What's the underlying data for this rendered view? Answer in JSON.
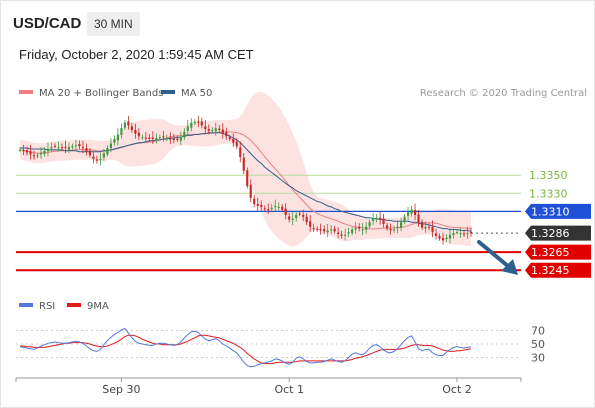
{
  "header": {
    "pair": "USD/CAD",
    "timeframe": "30 MIN",
    "datetime": "Friday, October 2, 2020 1:59:45 AM CET"
  },
  "legend": {
    "items": [
      {
        "label": "MA 20 + Bollinger Bands",
        "color": "#f08080"
      },
      {
        "label": "MA 50",
        "color": "#2e5f8f"
      }
    ],
    "research": "Research © 2020 Trading Central"
  },
  "rsi_legend": {
    "items": [
      {
        "label": "RSI",
        "color": "#5577dd"
      },
      {
        "label": "9MA",
        "color": "#e31b1b"
      }
    ]
  },
  "colors": {
    "up": "#3c9b3c",
    "down": "#c62828",
    "resistance_light": "#7cb342",
    "pivot": "#1f4fd6",
    "support": "#e00000",
    "current": "#333333",
    "arrow": "#2e5f8f",
    "band": "#fde2e2"
  },
  "chart_data": {
    "type": "candlestick",
    "ylim": [
      1.3222,
      1.3432
    ],
    "x_ticks": [
      {
        "label": "Sep 30",
        "index": 29
      },
      {
        "label": "Oct 1",
        "index": 77
      },
      {
        "label": "Oct 2",
        "index": 125
      }
    ],
    "levels": [
      {
        "value": 1.335,
        "label": "1.3350",
        "style": "resistance_light"
      },
      {
        "value": 1.333,
        "label": "1.3330",
        "style": "resistance_light"
      },
      {
        "value": 1.331,
        "label": "1.3310",
        "style": "pivot"
      },
      {
        "value": 1.3286,
        "label": "1.3286",
        "style": "current"
      },
      {
        "value": 1.3265,
        "label": "1.3265",
        "style": "support"
      },
      {
        "value": 1.3245,
        "label": "1.3245",
        "style": "support"
      }
    ],
    "close_series": [
      1.3378,
      1.3377,
      1.3375,
      1.3373,
      1.3371,
      1.3372,
      1.3375,
      1.3377,
      1.3379,
      1.3381,
      1.3382,
      1.3381,
      1.338,
      1.338,
      1.3381,
      1.3382,
      1.3383,
      1.3382,
      1.338,
      1.3376,
      1.3372,
      1.3368,
      1.3366,
      1.3368,
      1.3374,
      1.338,
      1.3385,
      1.339,
      1.3395,
      1.3402,
      1.3408,
      1.3405,
      1.34,
      1.3396,
      1.3393,
      1.3392,
      1.3391,
      1.339,
      1.339,
      1.3391,
      1.3392,
      1.3392,
      1.3391,
      1.339,
      1.3389,
      1.3389,
      1.3392,
      1.3398,
      1.3404,
      1.3408,
      1.3409,
      1.3408,
      1.3405,
      1.3401,
      1.3399,
      1.34,
      1.3402,
      1.34,
      1.3396,
      1.3393,
      1.339,
      1.3386,
      1.3382,
      1.337,
      1.3355,
      1.3338,
      1.3325,
      1.3318,
      1.3316,
      1.3315,
      1.3313,
      1.3312,
      1.3314,
      1.3316,
      1.3315,
      1.3312,
      1.3306,
      1.3301,
      1.3302,
      1.3306,
      1.3307,
      1.3304,
      1.3298,
      1.3293,
      1.3291,
      1.329,
      1.3289,
      1.3288,
      1.3289,
      1.329,
      1.3288,
      1.3285,
      1.3283,
      1.3284,
      1.3287,
      1.329,
      1.3292,
      1.3291,
      1.329,
      1.3293,
      1.3298,
      1.3302,
      1.3303,
      1.3301,
      1.3296,
      1.3291,
      1.3289,
      1.329,
      1.3293,
      1.3298,
      1.3304,
      1.3309,
      1.3312,
      1.3306,
      1.3297,
      1.3292,
      1.3293,
      1.3292,
      1.3287,
      1.3283,
      1.328,
      1.3278,
      1.3281,
      1.3284,
      1.3286,
      1.3287,
      1.3286,
      1.3285,
      1.3286,
      1.3286
    ],
    "ma50": [
      1.338,
      1.338,
      1.338,
      1.3379,
      1.3379,
      1.3379,
      1.3379,
      1.3379,
      1.3378,
      1.3378,
      1.3378,
      1.3378,
      1.3378,
      1.3377,
      1.3377,
      1.3377,
      1.3377,
      1.3376,
      1.3376,
      1.3376,
      1.3376,
      1.3376,
      1.3376,
      1.3376,
      1.3377,
      1.3377,
      1.3378,
      1.3379,
      1.338,
      1.3381,
      1.3382,
      1.3383,
      1.3384,
      1.3385,
      1.3386,
      1.3386,
      1.3387,
      1.3388,
      1.3388,
      1.3389,
      1.3389,
      1.339,
      1.339,
      1.3391,
      1.3391,
      1.3392,
      1.3392,
      1.3393,
      1.3394,
      1.3394,
      1.3395,
      1.3395,
      1.3396,
      1.3396,
      1.3397,
      1.3397,
      1.3397,
      1.3397,
      1.3396,
      1.3395,
      1.3393,
      1.3391,
      1.3389,
      1.3386,
      1.3382,
      1.3378,
      1.3374,
      1.337,
      1.3366,
      1.3363,
      1.3359,
      1.3356,
      1.3353,
      1.335,
      1.3347,
      1.3344,
      1.3341,
      1.3338,
      1.3336,
      1.3333,
      1.3331,
      1.3329,
      1.3327,
      1.3325,
      1.3323,
      1.3321,
      1.332,
      1.3318,
      1.3316,
      1.3315,
      1.3313,
      1.3312,
      1.331,
      1.3309,
      1.3308,
      1.3307,
      1.3306,
      1.3305,
      1.3304,
      1.3303,
      1.3303,
      1.3302,
      1.3302,
      1.3301,
      1.3301,
      1.33,
      1.33,
      1.3299,
      1.3299,
      1.3299,
      1.3299,
      1.3299,
      1.3298,
      1.3298,
      1.3297,
      1.3296,
      1.3296,
      1.3295,
      1.3294,
      1.3293,
      1.3292,
      1.3291,
      1.3291,
      1.329,
      1.329,
      1.329,
      1.3289,
      1.3289,
      1.3289,
      1.3288,
      1.3288
    ],
    "rsi": [
      46,
      45,
      44,
      43,
      42,
      44,
      47,
      49,
      51,
      52,
      53,
      52,
      51,
      51,
      52,
      53,
      54,
      53,
      51,
      47,
      43,
      40,
      39,
      42,
      49,
      55,
      60,
      64,
      67,
      71,
      73,
      66,
      59,
      54,
      51,
      50,
      49,
      48,
      48,
      50,
      51,
      51,
      50,
      49,
      48,
      49,
      53,
      59,
      64,
      68,
      69,
      67,
      62,
      57,
      55,
      56,
      58,
      55,
      50,
      47,
      44,
      40,
      37,
      30,
      23,
      18,
      16,
      17,
      19,
      21,
      22,
      23,
      25,
      28,
      27,
      25,
      22,
      20,
      23,
      29,
      31,
      28,
      24,
      22,
      22,
      23,
      23,
      24,
      26,
      28,
      26,
      24,
      23,
      25,
      30,
      35,
      37,
      35,
      34,
      38,
      44,
      48,
      49,
      46,
      41,
      38,
      37,
      39,
      43,
      49,
      55,
      60,
      62,
      53,
      43,
      40,
      42,
      42,
      37,
      34,
      33,
      33,
      38,
      42,
      45,
      46,
      45,
      44,
      45,
      46
    ],
    "rsi_ma": [
      47,
      47,
      46,
      46,
      45,
      45,
      45,
      45,
      46,
      47,
      48,
      49,
      50,
      51,
      51,
      52,
      52,
      52,
      52,
      51,
      50,
      48,
      47,
      46,
      46,
      47,
      49,
      51,
      54,
      57,
      61,
      63,
      63,
      62,
      60,
      57,
      55,
      53,
      51,
      50,
      50,
      49,
      49,
      49,
      49,
      49,
      50,
      52,
      54,
      57,
      59,
      62,
      63,
      63,
      62,
      61,
      60,
      59,
      57,
      55,
      53,
      51,
      48,
      45,
      41,
      36,
      32,
      28,
      25,
      22,
      21,
      21,
      21,
      22,
      23,
      23,
      23,
      23,
      23,
      24,
      25,
      25,
      25,
      25,
      25,
      25,
      25,
      25,
      25,
      25,
      25,
      25,
      25,
      25,
      26,
      27,
      29,
      30,
      31,
      33,
      35,
      37,
      39,
      41,
      42,
      42,
      42,
      42,
      42,
      43,
      44,
      46,
      48,
      49,
      49,
      48,
      48,
      48,
      47,
      45,
      43,
      41,
      40,
      39,
      39,
      40,
      40,
      41,
      42,
      43
    ],
    "rsi_levels": [
      {
        "value": 70,
        "label": "70"
      },
      {
        "value": 50,
        "label": "50"
      },
      {
        "value": 30,
        "label": "30"
      }
    ]
  }
}
